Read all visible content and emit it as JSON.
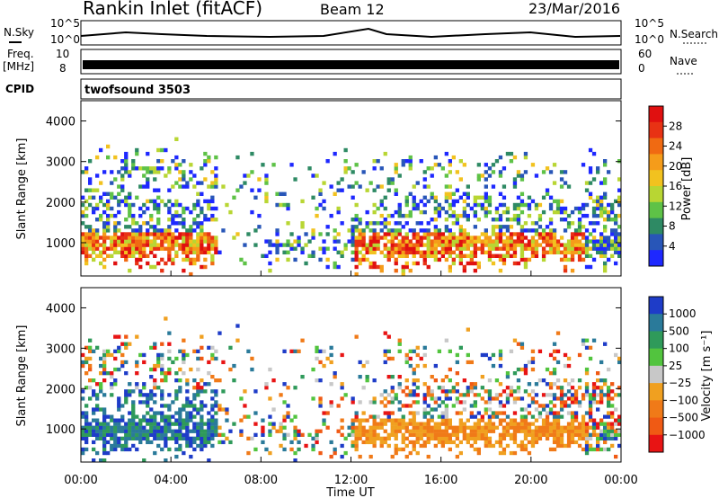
{
  "header": {
    "station": "Rankin Inlet (fitACF)",
    "beam": "Beam 12",
    "date": "23/Mar/2016"
  },
  "top_panels": {
    "nsky_label": "N.Sky",
    "nsearch_label": "N.Search",
    "noise_ticks_left": [
      "10^5",
      "10^0"
    ],
    "noise_ticks_right": [
      "10^5",
      "10^0"
    ],
    "freq_label_line1": "Freq.",
    "freq_label_line2": "[MHz]",
    "freq_ticks": [
      "10",
      "8"
    ],
    "nave_label": "Nave",
    "nave_ticks": [
      "60",
      "0"
    ],
    "cpid_label": "CPID",
    "cpid_value": "twofsound 3503"
  },
  "chart_data": [
    {
      "type": "heatmap",
      "title": "",
      "ylabel": "Slant Range [km]",
      "xlabel": "",
      "yticks": [
        "1000",
        "2000",
        "3000",
        "4000"
      ],
      "ylim": [
        180,
        4500
      ],
      "colorbar_label": "Power [dB]",
      "colorbar_ticks": [
        "4",
        "8",
        "12",
        "16",
        "20",
        "24",
        "28"
      ],
      "colorbar_colors": [
        "#1e28ff",
        "#2856b8",
        "#2e8a64",
        "#5ec247",
        "#b8d633",
        "#f2c21f",
        "#f59c1a",
        "#f06a12",
        "#e83214",
        "#e01010"
      ]
    },
    {
      "type": "heatmap",
      "title": "",
      "ylabel": "Slant Range [km]",
      "xlabel": "Time UT",
      "yticks": [
        "1000",
        "2000",
        "3000",
        "4000"
      ],
      "ylim": [
        180,
        4500
      ],
      "xticks": [
        "00:00",
        "04:00",
        "08:00",
        "12:00",
        "16:00",
        "20:00",
        "00:00"
      ],
      "colorbar_label": "Velocity [m s⁻¹]",
      "colorbar_ticks": [
        "1000",
        "500",
        "100",
        "25",
        "−25",
        "−100",
        "−500",
        "−1000"
      ],
      "colorbar_colors": [
        "#1e3cc8",
        "#2a7a9a",
        "#2f9a5a",
        "#52c43e",
        "#c8c8c8",
        "#f0a020",
        "#f07a18",
        "#f05a14",
        "#e81414"
      ]
    }
  ]
}
